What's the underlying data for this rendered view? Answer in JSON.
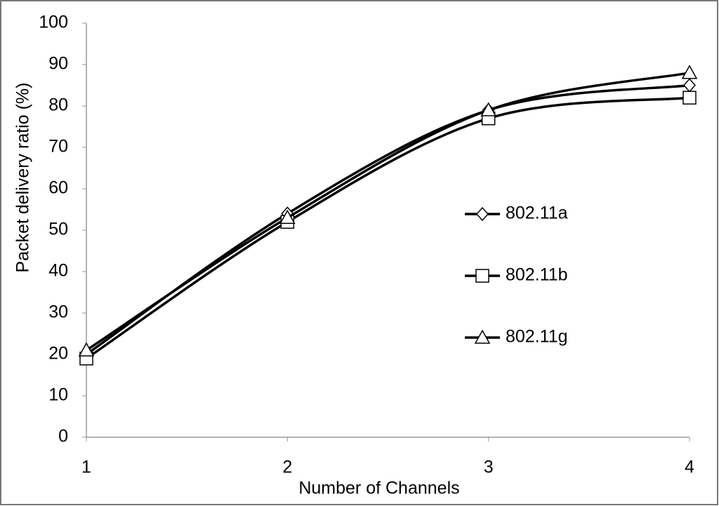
{
  "chart_data": {
    "type": "line",
    "x_label": "Number of Channels",
    "y_label": "Packet delivery ratio (%)",
    "x": [
      1,
      2,
      3,
      4
    ],
    "xlim": [
      1,
      4
    ],
    "xticks": [
      1,
      2,
      3,
      4
    ],
    "ylim": [
      0,
      100
    ],
    "yticks": [
      0,
      10,
      20,
      30,
      40,
      50,
      60,
      70,
      80,
      90,
      100
    ],
    "grid": false,
    "smooth": true,
    "series": [
      {
        "name": "802.11a",
        "color": "#000000",
        "marker": "diamond",
        "values": [
          20,
          54,
          79,
          85
        ]
      },
      {
        "name": "802.11b",
        "color": "#000000",
        "marker": "square",
        "values": [
          19,
          52,
          77,
          82
        ]
      },
      {
        "name": "802.11g",
        "color": "#000000",
        "marker": "triangle",
        "values": [
          21,
          53,
          79,
          88
        ]
      }
    ]
  }
}
